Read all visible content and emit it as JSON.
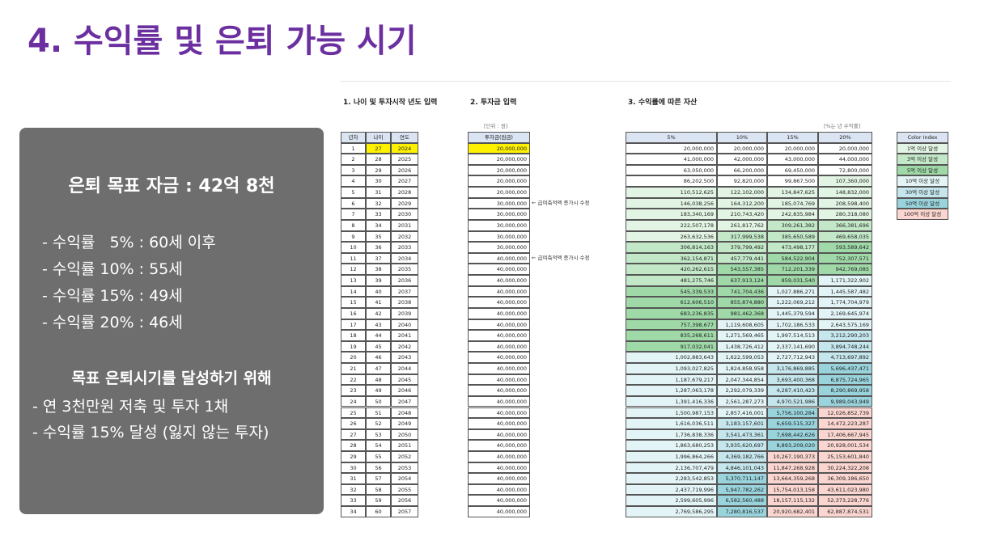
{
  "title": "4. 수익률 및 은퇴 가능 시기",
  "summary": {
    "goal": "은퇴 목표 자금 : 42억 8천",
    "rates": [
      "- 수익률   5% : 60세 이후",
      "- 수익률 10% : 55세",
      "- 수익률 15% : 49세",
      "- 수익률 20% : 46세"
    ],
    "subheading": "목표 은퇴시기를 달성하기 위해",
    "actions": [
      "- 연 3천만원 저축 및 투자 1채",
      "- 수익률 15% 달성 (잃지 않는 투자)"
    ]
  },
  "sheet": {
    "sections": [
      "1. 나이 및 투자시작 년도 입력",
      "2. 투자금 입력",
      "3. 수익률에 따른 자산"
    ],
    "unit_investment": "[단위 : 원]",
    "unit_returns": "[%는 년 수익률]",
    "headers": [
      "년차",
      "나이",
      "연도",
      "투자금(원금)",
      "5%",
      "10%",
      "15%",
      "20%"
    ],
    "rows": [
      [
        1,
        27,
        2024,
        "20,000,000",
        [
          "20,000,000",
          "20,000,000",
          "20,000,000",
          "20,000,000"
        ]
      ],
      [
        2,
        28,
        2025,
        "20,000,000",
        [
          "41,000,000",
          "42,000,000",
          "43,000,000",
          "44,000,000"
        ]
      ],
      [
        3,
        29,
        2026,
        "20,000,000",
        [
          "63,050,000",
          "66,200,000",
          "69,450,000",
          "72,800,000"
        ]
      ],
      [
        4,
        30,
        2027,
        "20,000,000",
        [
          "86,202,500",
          "92,820,000",
          "99,867,500",
          "107,360,000"
        ]
      ],
      [
        5,
        31,
        2028,
        "20,000,000",
        [
          "110,512,625",
          "122,102,000",
          "134,847,625",
          "148,832,000"
        ]
      ],
      [
        6,
        32,
        2029,
        "30,000,000",
        [
          "146,038,256",
          "164,312,200",
          "185,074,769",
          "208,598,400"
        ],
        "← 급여축적액 증가시 수정"
      ],
      [
        7,
        33,
        2030,
        "30,000,000",
        [
          "183,340,169",
          "210,743,420",
          "242,835,984",
          "280,318,080"
        ]
      ],
      [
        8,
        34,
        2031,
        "30,000,000",
        [
          "222,507,178",
          "261,817,762",
          "309,261,382",
          "366,381,696"
        ]
      ],
      [
        9,
        35,
        2032,
        "30,000,000",
        [
          "263,632,536",
          "317,999,538",
          "385,650,589",
          "469,658,035"
        ]
      ],
      [
        10,
        36,
        2033,
        "30,000,000",
        [
          "306,814,163",
          "379,799,492",
          "473,498,177",
          "593,589,642"
        ]
      ],
      [
        11,
        37,
        2034,
        "40,000,000",
        [
          "362,154,871",
          "457,779,441",
          "584,522,904",
          "752,307,571"
        ],
        "← 급여축적액 증가시 수정"
      ],
      [
        12,
        38,
        2035,
        "40,000,000",
        [
          "420,262,615",
          "543,557,385",
          "712,201,339",
          "942,769,085"
        ]
      ],
      [
        13,
        39,
        2036,
        "40,000,000",
        [
          "481,275,746",
          "637,913,124",
          "859,031,540",
          "1,171,322,902"
        ]
      ],
      [
        14,
        40,
        2037,
        "40,000,000",
        [
          "545,339,533",
          "741,704,436",
          "1,027,886,271",
          "1,445,587,482"
        ]
      ],
      [
        15,
        41,
        2038,
        "40,000,000",
        [
          "612,606,510",
          "855,874,880",
          "1,222,069,212",
          "1,774,704,979"
        ]
      ],
      [
        16,
        42,
        2039,
        "40,000,000",
        [
          "683,236,835",
          "981,462,368",
          "1,445,379,594",
          "2,169,645,974"
        ]
      ],
      [
        17,
        43,
        2040,
        "40,000,000",
        [
          "757,398,677",
          "1,119,608,605",
          "1,702,186,533",
          "2,643,575,169"
        ]
      ],
      [
        18,
        44,
        2041,
        "40,000,000",
        [
          "835,268,611",
          "1,271,569,465",
          "1,997,514,513",
          "3,212,290,203"
        ]
      ],
      [
        19,
        45,
        2042,
        "40,000,000",
        [
          "917,032,041",
          "1,438,726,412",
          "2,337,141,690",
          "3,894,748,244"
        ]
      ],
      [
        20,
        46,
        2043,
        "40,000,000",
        [
          "1,002,883,643",
          "1,622,599,053",
          "2,727,712,943",
          "4,713,697,892"
        ]
      ],
      [
        21,
        47,
        2044,
        "40,000,000",
        [
          "1,093,027,825",
          "1,824,858,958",
          "3,176,869,885",
          "5,696,437,471"
        ]
      ],
      [
        22,
        48,
        2045,
        "40,000,000",
        [
          "1,187,679,217",
          "2,047,344,854",
          "3,693,400,368",
          "6,875,724,965"
        ]
      ],
      [
        23,
        49,
        2046,
        "40,000,000",
        [
          "1,287,063,178",
          "2,292,079,339",
          "4,287,410,423",
          "8,290,869,958"
        ]
      ],
      [
        24,
        50,
        2047,
        "40,000,000",
        [
          "1,391,416,336",
          "2,561,287,273",
          "4,970,521,986",
          "9,989,043,949"
        ]
      ],
      [
        25,
        51,
        2048,
        "40,000,000",
        [
          "1,500,987,153",
          "2,857,416,001",
          "5,756,100,284",
          "12,026,852,739"
        ]
      ],
      [
        26,
        52,
        2049,
        "40,000,000",
        [
          "1,616,036,511",
          "3,183,157,601",
          "6,659,515,327",
          "14,472,223,287"
        ]
      ],
      [
        27,
        53,
        2050,
        "40,000,000",
        [
          "1,736,838,336",
          "3,541,473,361",
          "7,698,442,626",
          "17,406,667,945"
        ]
      ],
      [
        28,
        54,
        2051,
        "40,000,000",
        [
          "1,863,680,253",
          "3,935,620,697",
          "8,893,209,020",
          "20,928,001,534"
        ]
      ],
      [
        29,
        55,
        2052,
        "40,000,000",
        [
          "1,996,864,266",
          "4,369,182,766",
          "10,267,190,373",
          "25,153,601,840"
        ]
      ],
      [
        30,
        56,
        2053,
        "40,000,000",
        [
          "2,136,707,479",
          "4,846,101,043",
          "11,847,268,928",
          "30,224,322,208"
        ]
      ],
      [
        31,
        57,
        2054,
        "40,000,000",
        [
          "2,283,542,853",
          "5,370,711,147",
          "13,664,359,268",
          "36,309,186,650"
        ]
      ],
      [
        32,
        58,
        2055,
        "40,000,000",
        [
          "2,437,719,996",
          "5,947,782,262",
          "15,754,013,158",
          "43,611,023,980"
        ]
      ],
      [
        33,
        59,
        2056,
        "40,000,000",
        [
          "2,599,605,996",
          "6,582,560,488",
          "18,157,115,132",
          "52,373,228,776"
        ]
      ],
      [
        34,
        60,
        2057,
        "40,000,000",
        [
          "2,769,586,295",
          "7,280,816,537",
          "20,920,682,401",
          "62,887,874,531"
        ]
      ]
    ],
    "color_index": {
      "title": "Color Index",
      "items": [
        {
          "label": "1억 이상 달성",
          "color": "#e2f4e4",
          "threshold": 100000000
        },
        {
          "label": "3억 이상 달성",
          "color": "#c3e8c8",
          "threshold": 300000000
        },
        {
          "label": "5억 이상 달성",
          "color": "#9fd9a8",
          "threshold": 500000000
        },
        {
          "label": "10억 이상 달성",
          "color": "#e3f4f6",
          "threshold": 1000000000
        },
        {
          "label": "30억 이상 달성",
          "color": "#c4e6ec",
          "threshold": 3000000000
        },
        {
          "label": "50억 이상 달성",
          "color": "#99d3dc",
          "threshold": 5000000000
        },
        {
          "label": "100억 이상 달성",
          "color": "#fbd5cf",
          "threshold": 10000000000
        }
      ]
    }
  }
}
